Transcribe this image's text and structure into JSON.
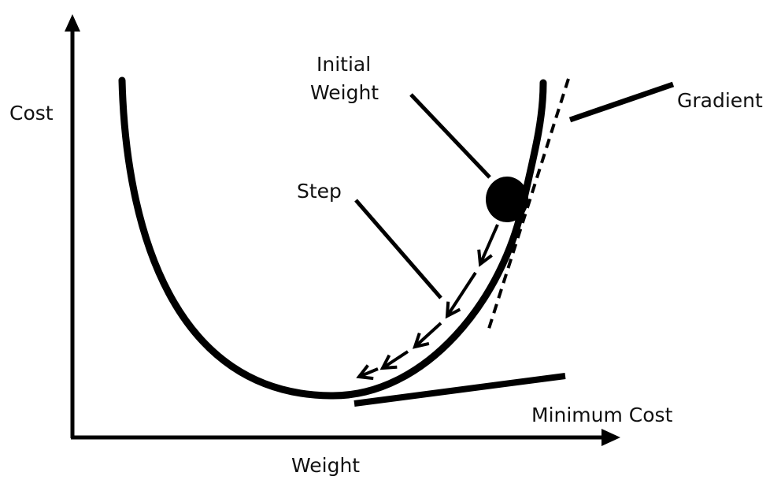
{
  "labels": {
    "y_axis": "Cost",
    "x_axis": "Weight",
    "initial_weight_line1": "Initial",
    "initial_weight_line2": "Weight",
    "gradient": "Gradient",
    "step": "Step",
    "minimum_cost": "Minimum Cost"
  },
  "colors": {
    "ink": "#000000",
    "text": "#111111",
    "background": "#ffffff"
  }
}
